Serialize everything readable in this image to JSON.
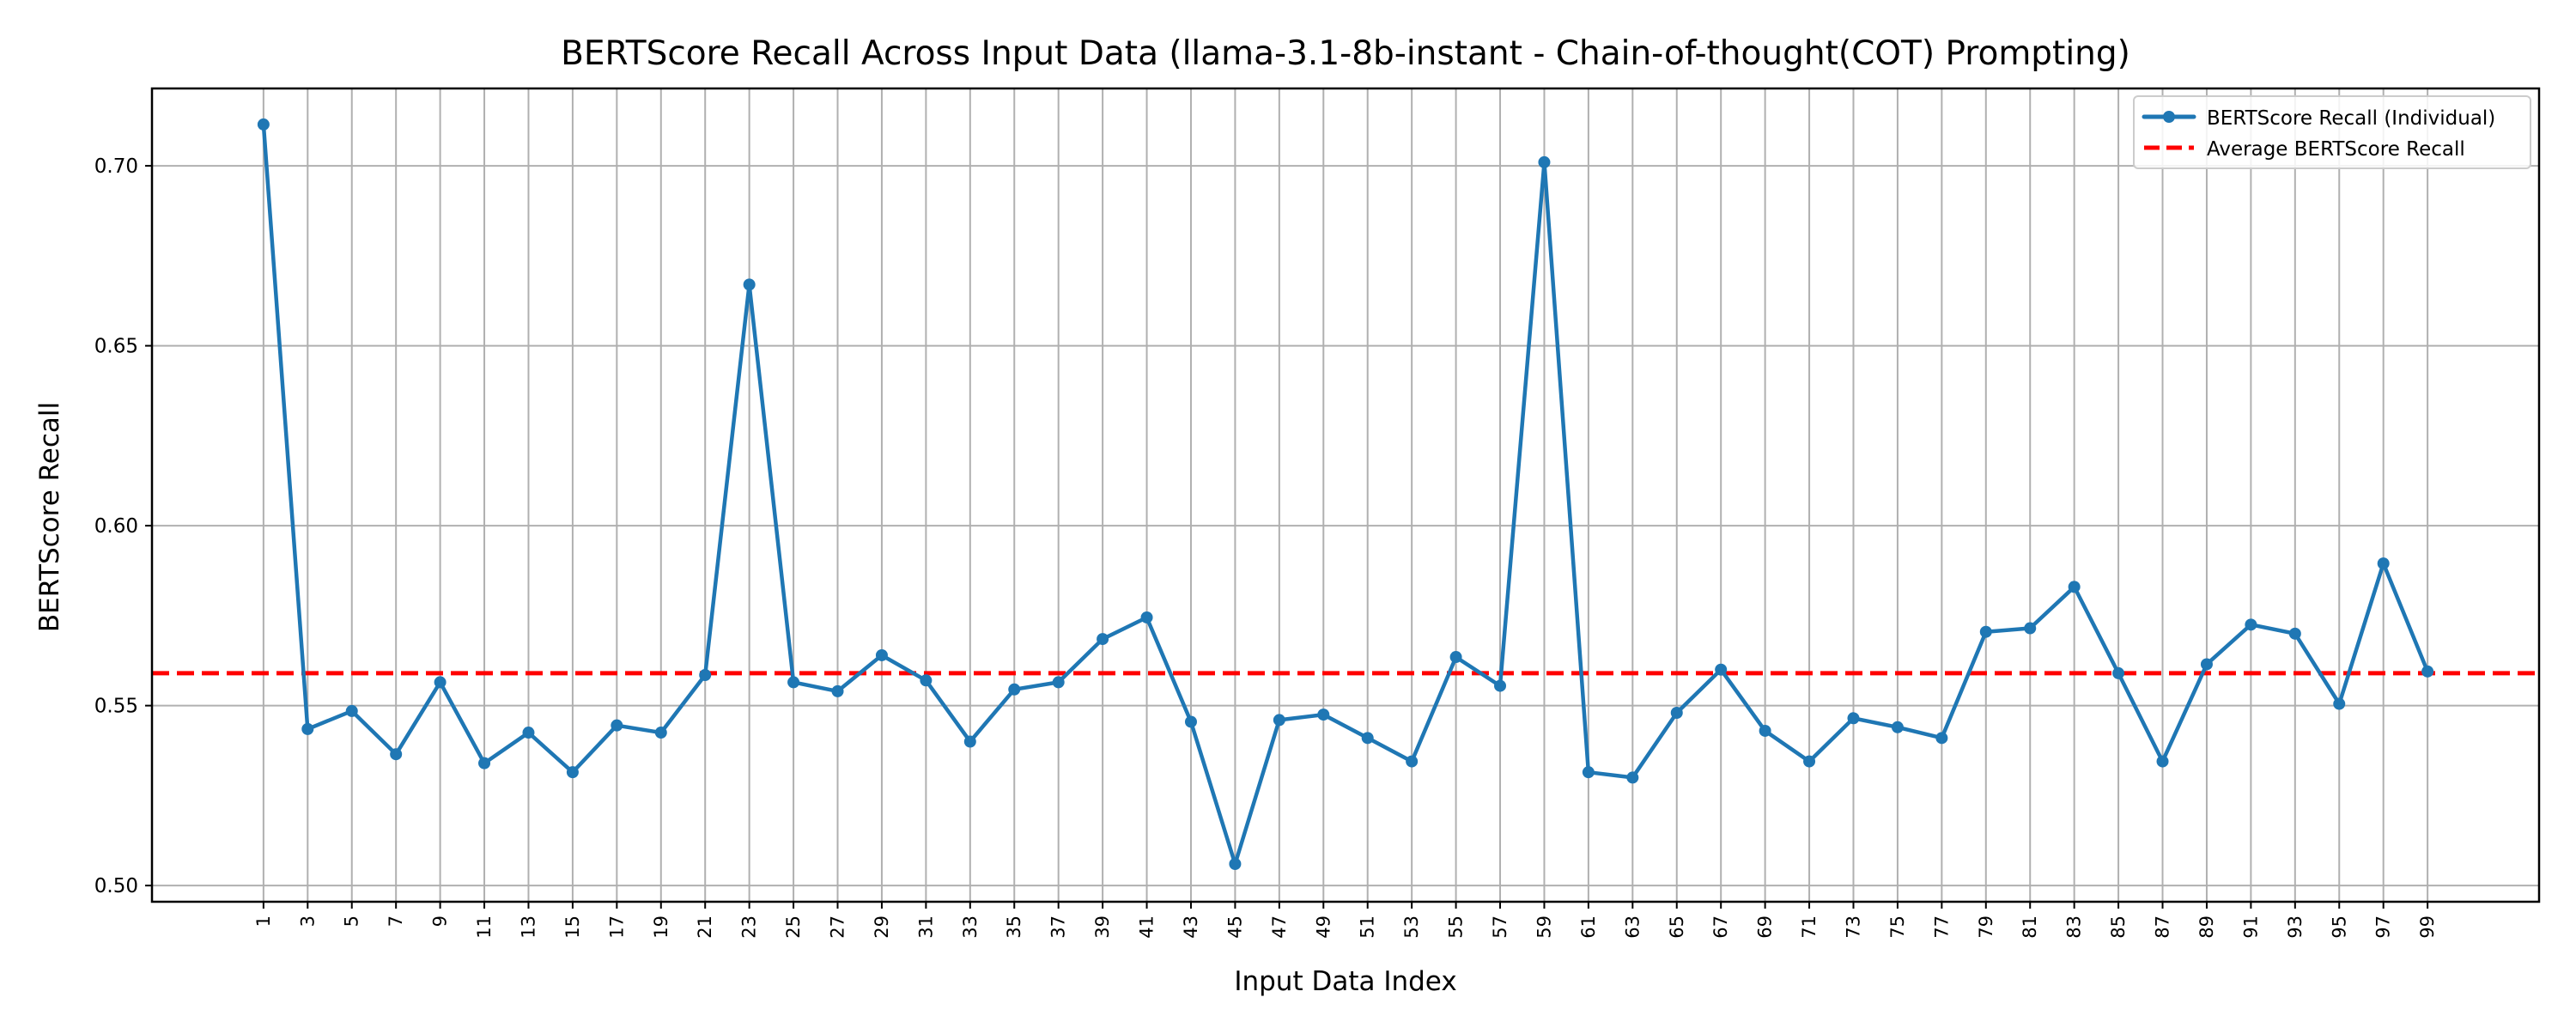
{
  "chart_data": {
    "type": "line",
    "title": "BERTScore Recall Across Input Data (llama-3.1-8b-instant - Chain-of-thought(COT) Prompting)",
    "xlabel": "Input Data Index",
    "ylabel": "BERTScore Recall",
    "x": [
      1,
      3,
      5,
      7,
      9,
      11,
      13,
      15,
      17,
      19,
      21,
      23,
      25,
      27,
      29,
      31,
      33,
      35,
      37,
      39,
      41,
      43,
      45,
      47,
      49,
      51,
      53,
      55,
      57,
      59,
      61,
      63,
      65,
      67,
      69,
      71,
      73,
      75,
      77,
      79,
      81,
      83,
      85,
      87,
      89,
      91,
      93,
      95,
      97,
      99
    ],
    "xticks": [
      "1",
      "3",
      "5",
      "7",
      "9",
      "11",
      "13",
      "15",
      "17",
      "19",
      "21",
      "23",
      "25",
      "27",
      "29",
      "31",
      "33",
      "35",
      "37",
      "39",
      "41",
      "43",
      "45",
      "47",
      "49",
      "51",
      "53",
      "55",
      "57",
      "59",
      "61",
      "63",
      "65",
      "67",
      "69",
      "71",
      "73",
      "75",
      "77",
      "79",
      "81",
      "83",
      "85",
      "87",
      "89",
      "91",
      "93",
      "95",
      "97",
      "99"
    ],
    "yticks": [
      "0.50",
      "0.55",
      "0.60",
      "0.65",
      "0.70"
    ],
    "xlim": [
      -4.05,
      104.05
    ],
    "ylim": [
      0.4955,
      0.7215
    ],
    "grid": true,
    "legend_position": "top-right",
    "series": [
      {
        "name": "BERTScore Recall (Individual)",
        "color": "#1f77b4",
        "style": "line-with-dot-markers",
        "values": [
          0.7115,
          0.5435,
          0.5485,
          0.5365,
          0.5565,
          0.534,
          0.5425,
          0.5315,
          0.5445,
          0.5425,
          0.5585,
          0.667,
          0.5565,
          0.554,
          0.564,
          0.557,
          0.54,
          0.5545,
          0.5565,
          0.5685,
          0.5745,
          0.5455,
          0.506,
          0.546,
          0.5475,
          0.541,
          0.5345,
          0.5635,
          0.5555,
          0.701,
          0.5315,
          0.53,
          0.548,
          0.56,
          0.543,
          0.5345,
          0.5465,
          0.544,
          0.541,
          0.5705,
          0.5715,
          0.583,
          0.559,
          0.5345,
          0.5615,
          0.5725,
          0.57,
          0.5505,
          0.5895,
          0.5595
        ]
      },
      {
        "name": "Average BERTScore Recall",
        "color": "#ff0000",
        "style": "dashed-horizontal",
        "value": 0.559
      }
    ]
  }
}
